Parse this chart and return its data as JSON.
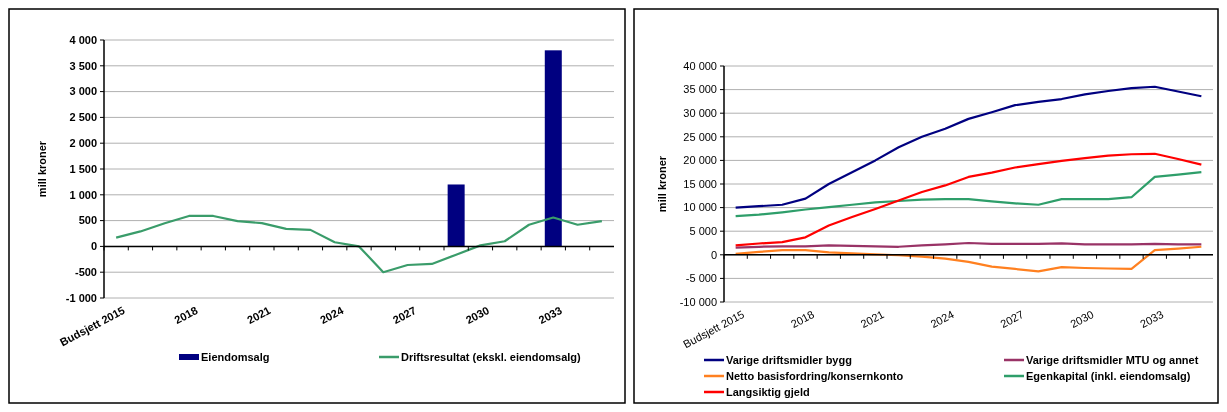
{
  "chart_data": [
    {
      "type": "line",
      "ylabel": "mill kroner",
      "categories": [
        "Budsjett 2015",
        null,
        null,
        "2018",
        null,
        null,
        "2021",
        null,
        null,
        "2024",
        null,
        null,
        "2027",
        null,
        null,
        "2030",
        null,
        null,
        "2033",
        null,
        null
      ],
      "ylim": [
        -1000,
        4000
      ],
      "yticks": [
        {
          "value": 4000,
          "label": "4 000"
        },
        {
          "value": 3500,
          "label": "3 500"
        },
        {
          "value": 3000,
          "label": "3 000"
        },
        {
          "value": 2500,
          "label": "2 500"
        },
        {
          "value": 2000,
          "label": "2 000"
        },
        {
          "value": 1500,
          "label": "1 500"
        },
        {
          "value": 1000,
          "label": "1 000"
        },
        500,
        0,
        -500,
        {
          "value": -1000,
          "label": "-1 000"
        }
      ],
      "grid": "y",
      "legend": "bottom",
      "series": [
        {
          "name": "Eiendomsalg",
          "type": "bar",
          "color": "#000080",
          "values": [
            null,
            null,
            null,
            null,
            null,
            null,
            null,
            null,
            null,
            null,
            null,
            null,
            null,
            null,
            1200,
            null,
            null,
            null,
            3800,
            null,
            null
          ]
        },
        {
          "name": "Driftsresultat (ekskl. eiendomsalg)",
          "type": "line",
          "color": "#3a9c6a",
          "values": [
            170,
            290,
            450,
            590,
            590,
            490,
            450,
            340,
            320,
            80,
            0,
            -500,
            -360,
            -340,
            -160,
            20,
            100,
            420,
            560,
            420,
            490
          ]
        }
      ]
    },
    {
      "type": "line",
      "ylabel": "mill kroner",
      "categories": [
        "Budsjett 2015",
        null,
        null,
        "2018",
        null,
        null,
        "2021",
        null,
        null,
        "2024",
        null,
        null,
        "2027",
        null,
        null,
        "2030",
        null,
        null,
        "2033",
        null,
        null
      ],
      "ylim": [
        -10000,
        40000
      ],
      "yticks": [
        {
          "value": 40000,
          "label": "40 000"
        },
        {
          "value": 35000,
          "label": "35 000"
        },
        {
          "value": 30000,
          "label": "30 000"
        },
        {
          "value": 25000,
          "label": "25 000"
        },
        {
          "value": 20000,
          "label": "20 000"
        },
        {
          "value": 15000,
          "label": "15 000"
        },
        {
          "value": 10000,
          "label": "10 000"
        },
        {
          "value": 5000,
          "label": "5 000"
        },
        0,
        {
          "value": -5000,
          "label": "-5 000"
        },
        {
          "value": -10000,
          "label": "-10 000"
        }
      ],
      "grid": "y",
      "legend": "bottom",
      "series": [
        {
          "name": "Varige driftsmidler bygg",
          "color": "#000080",
          "values": [
            10000,
            10300,
            10600,
            11900,
            15000,
            17500,
            20000,
            22800,
            25000,
            26700,
            28800,
            30200,
            31700,
            32400,
            33000,
            34000,
            34700,
            35300,
            35600,
            34600,
            33600
          ]
        },
        {
          "name": "Varige driftsmidler MTU og annet",
          "color": "#993366",
          "values": [
            1500,
            1700,
            1800,
            1800,
            2000,
            1900,
            1800,
            1700,
            2000,
            2200,
            2500,
            2300,
            2300,
            2300,
            2400,
            2200,
            2200,
            2200,
            2300,
            2200,
            2200
          ]
        },
        {
          "name": "Netto basisfordring/konsernkonto",
          "color": "#ff8020",
          "values": [
            200,
            600,
            1000,
            1000,
            500,
            300,
            100,
            -100,
            -400,
            -800,
            -1500,
            -2500,
            -3000,
            -3500,
            -2600,
            -2800,
            -2900,
            -3000,
            1000,
            1300,
            1700
          ]
        },
        {
          "name": "Egenkapital (inkl. eiendomsalg)",
          "color": "#2e9e6a",
          "values": [
            8200,
            8500,
            9000,
            9600,
            10100,
            10600,
            11100,
            11400,
            11700,
            11800,
            11800,
            11300,
            10900,
            10600,
            11800,
            11800,
            11800,
            12200,
            16500,
            17000,
            17500
          ]
        },
        {
          "name": "Langsiktig gjeld",
          "color": "#ff0000",
          "values": [
            2000,
            2400,
            2700,
            3700,
            6200,
            8000,
            9700,
            11500,
            13300,
            14700,
            16500,
            17400,
            18500,
            19200,
            19900,
            20500,
            21000,
            21300,
            21400,
            20300,
            19100
          ]
        }
      ]
    }
  ]
}
